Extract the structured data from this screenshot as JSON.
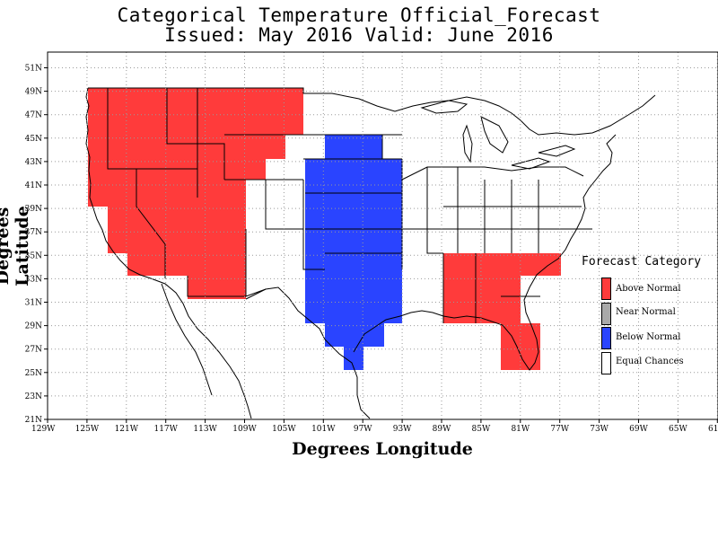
{
  "title_line1": "Categorical Temperature Official_Forecast",
  "title_line2": "Issued: May 2016 Valid: June 2016",
  "xlabel": "Degrees Longitude",
  "ylabel": "Degrees Latitude",
  "lon_ticks": [
    "129W",
    "125W",
    "121W",
    "117W",
    "113W",
    "109W",
    "105W",
    "101W",
    "97W",
    "93W",
    "89W",
    "85W",
    "81W",
    "77W",
    "73W",
    "69W",
    "65W",
    "61W"
  ],
  "lat_ticks": [
    "21N",
    "23N",
    "25N",
    "27N",
    "29N",
    "31N",
    "33N",
    "35N",
    "37N",
    "39N",
    "41N",
    "43N",
    "45N",
    "47N",
    "49N",
    "51N"
  ],
  "legend": {
    "title": "Forecast Category",
    "items": [
      {
        "label": "Above Normal",
        "color": "#ff3b3b"
      },
      {
        "label": "Near Normal",
        "color": "#a9a9a9"
      },
      {
        "label": "Below Normal",
        "color": "#2a44ff"
      },
      {
        "label": "Equal Chances",
        "color": "#ffffff"
      }
    ]
  },
  "colors": {
    "above": "#ff3b3b",
    "below": "#2a44ff",
    "grid": "#9a9a9a",
    "outline": "#000000"
  }
}
